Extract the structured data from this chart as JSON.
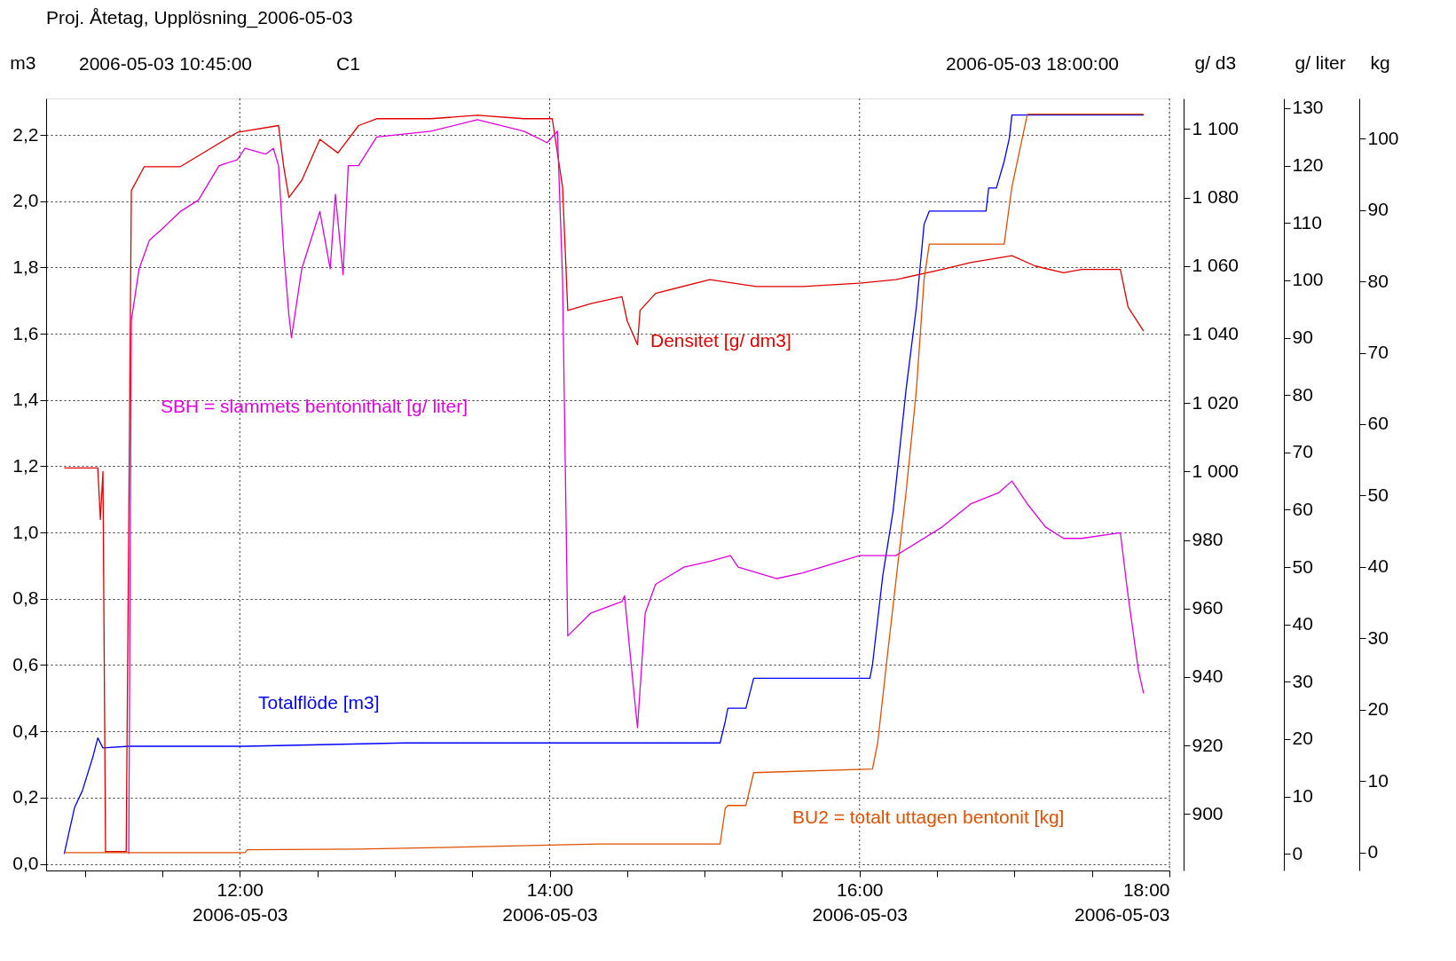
{
  "chart_data": [
    {
      "type": "line",
      "title": "Proj. Åtetag, Upplösning_2006-05-03",
      "ylabel": "m3",
      "y2label": "g/ d3",
      "y3label": "g/ liter",
      "annotations": [
        "2006-05-03 10:45:00",
        "C1",
        "2006-05-03 18:00:00"
      ],
      "grid": true,
      "xlim": [
        "2006-05-03T10:45",
        "2006-05-03T18:00"
      ],
      "xticks": [
        {
          "value": "2006-05-03T11:00",
          "label": null
        },
        {
          "value": "2006-05-03T11:30",
          "label": null
        },
        {
          "value": "2006-05-03T12:00",
          "label": "12:00\n2006-05-03"
        },
        {
          "value": "2006-05-03T12:30",
          "label": null
        },
        {
          "value": "2006-05-03T13:00",
          "label": null
        },
        {
          "value": "2006-05-03T13:30",
          "label": null
        },
        {
          "value": "2006-05-03T14:00",
          "label": "14:00\n2006-05-03"
        },
        {
          "value": "2006-05-03T14:30",
          "label": null
        },
        {
          "value": "2006-05-03T15:00",
          "label": null
        },
        {
          "value": "2006-05-03T15:30",
          "label": null
        },
        {
          "value": "2006-05-03T16:00",
          "label": "16:00\n2006-05-03"
        },
        {
          "value": "2006-05-03T16:30",
          "label": null
        },
        {
          "value": "2006-05-03T17:00",
          "label": null
        },
        {
          "value": "2006-05-03T17:30",
          "label": null
        },
        {
          "value": "2006-05-03T18:00",
          "label": "18:00\n2006-05-03"
        }
      ],
      "ylim": [
        -0.02,
        2.31
      ],
      "yticks": [
        {
          "value": 0,
          "label": "0,0"
        },
        {
          "value": 0.2,
          "label": "0,2"
        },
        {
          "value": 0.4,
          "label": "0,4"
        },
        {
          "value": 0.6,
          "label": "0,6"
        },
        {
          "value": 0.8,
          "label": "0,8"
        },
        {
          "value": 1.0,
          "label": "1,0"
        },
        {
          "value": 1.2,
          "label": "1,2"
        },
        {
          "value": 1.4,
          "label": "1,4"
        },
        {
          "value": 1.6,
          "label": "1,6"
        },
        {
          "value": 1.8,
          "label": "1,8"
        },
        {
          "value": 2.0,
          "label": "2,0"
        },
        {
          "value": 2.2,
          "label": "2,2"
        }
      ],
      "y2lim": [
        883.5,
        1108.9
      ],
      "y2ticks": [
        900,
        920,
        940,
        960,
        980,
        {
          "value": 1000,
          "label": "1 000"
        },
        {
          "value": 1020,
          "label": "1 020"
        },
        {
          "value": 1040,
          "label": "1 040"
        },
        {
          "value": 1060,
          "label": "1 060"
        },
        {
          "value": 1080,
          "label": "1 080"
        },
        {
          "value": 1100,
          "label": "1 100"
        }
      ],
      "y3lim": [
        -2.9,
        131.7
      ],
      "y3ticks": [
        0,
        10,
        20,
        30,
        40,
        50,
        60,
        70,
        80,
        90,
        100,
        110,
        120,
        130
      ],
      "series": [
        {
          "name": "Totalflöde [m3]",
          "color": "#0000ff",
          "axis": "y",
          "x": [
            "2006-05-03T10:52",
            "2006-05-03T10:56",
            "2006-05-03T10:59",
            "2006-05-03T11:03",
            "2006-05-03T11:05",
            "2006-05-03T11:07",
            "2006-05-03T11:17",
            "2006-05-03T12:02",
            "2006-05-03T13:04",
            "2006-05-03T15:06",
            "2006-05-03T15:08",
            "2006-05-03T15:09",
            "2006-05-03T15:16",
            "2006-05-03T15:19",
            "2006-05-03T16:04",
            "2006-05-03T16:05",
            "2006-05-03T16:09",
            "2006-05-03T16:13",
            "2006-05-03T16:18",
            "2006-05-03T16:22",
            "2006-05-03T16:25",
            "2006-05-03T16:27",
            "2006-05-03T16:49",
            "2006-05-03T16:50",
            "2006-05-03T16:53",
            "2006-05-03T16:56",
            "2006-05-03T16:58",
            "2006-05-03T16:59",
            "2006-05-03T17:50"
          ],
          "values": [
            0.03,
            0.17,
            0.22,
            0.32,
            0.38,
            0.35,
            0.355,
            0.355,
            0.365,
            0.365,
            0.43,
            0.47,
            0.47,
            0.56,
            0.56,
            0.6,
            0.87,
            1.065,
            1.43,
            1.68,
            1.93,
            1.97,
            1.97,
            2.04,
            2.04,
            2.12,
            2.19,
            2.26,
            2.26
          ]
        },
        {
          "name": "Densitet [g/ dm3]",
          "color": "#e00000",
          "axis": "y2",
          "x": [
            "2006-05-03T10:52",
            "2006-05-03T11:05",
            "2006-05-03T11:06",
            "2006-05-03T11:07",
            "2006-05-03T11:08",
            "2006-05-03T11:16",
            "2006-05-03T11:18",
            "2006-05-03T11:23",
            "2006-05-03T11:37",
            "2006-05-03T11:48",
            "2006-05-03T11:59",
            "2006-05-03T12:15",
            "2006-05-03T12:17",
            "2006-05-03T12:19",
            "2006-05-03T12:24",
            "2006-05-03T12:31",
            "2006-05-03T12:38",
            "2006-05-03T12:46",
            "2006-05-03T12:53",
            "2006-05-03T13:14",
            "2006-05-03T13:32",
            "2006-05-03T13:50",
            "2006-05-03T14:01",
            "2006-05-03T14:05",
            "2006-05-03T14:07",
            "2006-05-03T14:16",
            "2006-05-03T14:28",
            "2006-05-03T14:30",
            "2006-05-03T14:34",
            "2006-05-03T14:35",
            "2006-05-03T14:41",
            "2006-05-03T15:02",
            "2006-05-03T15:20",
            "2006-05-03T15:38",
            "2006-05-03T16:00",
            "2006-05-03T16:14",
            "2006-05-03T16:32",
            "2006-05-03T16:43",
            "2006-05-03T16:59",
            "2006-05-03T17:08",
            "2006-05-03T17:19",
            "2006-05-03T17:26",
            "2006-05-03T17:41",
            "2006-05-03T17:44",
            "2006-05-03T17:50"
          ],
          "values": [
            1001,
            1001,
            986,
            1000,
            889,
            889,
            1082,
            1089,
            1089,
            1094,
            1099,
            1101,
            1089,
            1080,
            1085,
            1097,
            1093,
            1101,
            1103,
            1103,
            1104,
            1103,
            1103,
            1083,
            1047,
            1049,
            1051,
            1044,
            1037,
            1047,
            1052,
            1056,
            1054,
            1054,
            1055,
            1056,
            1059,
            1061,
            1063,
            1060,
            1058,
            1059,
            1059,
            1048,
            1041
          ]
        },
        {
          "name": "SBH = slammets bentonithalt [g/ liter]",
          "color": "#e000e0",
          "axis": "y3",
          "x": [
            "2006-05-03T11:17",
            "2006-05-03T11:18",
            "2006-05-03T11:21",
            "2006-05-03T11:25",
            "2006-05-03T11:30",
            "2006-05-03T11:37",
            "2006-05-03T11:44",
            "2006-05-03T11:52",
            "2006-05-03T11:59",
            "2006-05-03T12:02",
            "2006-05-03T12:10",
            "2006-05-03T12:13",
            "2006-05-03T12:15",
            "2006-05-03T12:17",
            "2006-05-03T12:19",
            "2006-05-03T12:20",
            "2006-05-03T12:24",
            "2006-05-03T12:31",
            "2006-05-03T12:35",
            "2006-05-03T12:37",
            "2006-05-03T12:40",
            "2006-05-03T12:42",
            "2006-05-03T12:46",
            "2006-05-03T12:53",
            "2006-05-03T13:14",
            "2006-05-03T13:32",
            "2006-05-03T13:50",
            "2006-05-03T13:59",
            "2006-05-03T14:03",
            "2006-05-03T14:05",
            "2006-05-03T14:07",
            "2006-05-03T14:16",
            "2006-05-03T14:28",
            "2006-05-03T14:29",
            "2006-05-03T14:32",
            "2006-05-03T14:34",
            "2006-05-03T14:37",
            "2006-05-03T14:41",
            "2006-05-03T14:52",
            "2006-05-03T15:02",
            "2006-05-03T15:10",
            "2006-05-03T15:13",
            "2006-05-03T15:28",
            "2006-05-03T15:38",
            "2006-05-03T16:00",
            "2006-05-03T16:14",
            "2006-05-03T16:32",
            "2006-05-03T16:43",
            "2006-05-03T16:54",
            "2006-05-03T16:59",
            "2006-05-03T17:05",
            "2006-05-03T17:12",
            "2006-05-03T17:19",
            "2006-05-03T17:26",
            "2006-05-03T17:41",
            "2006-05-03T17:44",
            "2006-05-03T17:48",
            "2006-05-03T17:50"
          ],
          "values": [
            0,
            93,
            102,
            107,
            109,
            112,
            114,
            120,
            121,
            123,
            122,
            123,
            120,
            105,
            94,
            90,
            102,
            112,
            102,
            115,
            101,
            120,
            120,
            125,
            126,
            128,
            126,
            124,
            126,
            100,
            38,
            42,
            44,
            45,
            31,
            22,
            42,
            47,
            50,
            51,
            52,
            50,
            48,
            49,
            52,
            52,
            57,
            61,
            63,
            65,
            61,
            57,
            55,
            55,
            56,
            45,
            32,
            28
          ]
        }
      ]
    },
    {
      "type": "line",
      "ylabel": "kg",
      "tick_labels": "y",
      "xlim": [
        "2006-05-03T10:45",
        "2006-05-03T18:00"
      ],
      "ylim": [
        -2.5,
        105.6
      ],
      "yticks": [
        0,
        10,
        20,
        30,
        40,
        50,
        60,
        70,
        80,
        90,
        100
      ],
      "series": [
        {
          "name": "BU2 = totalt uttagen bentonit [kg]",
          "color": "#e05000",
          "axis": "y",
          "x": [
            "2006-05-03T10:52",
            "2006-05-03T12:02",
            "2006-05-03T12:03",
            "2006-05-03T12:46",
            "2006-05-03T13:29",
            "2006-05-03T14:19",
            "2006-05-03T15:06",
            "2006-05-03T15:08",
            "2006-05-03T15:09",
            "2006-05-03T15:16",
            "2006-05-03T15:19",
            "2006-05-03T16:05",
            "2006-05-03T16:07",
            "2006-05-03T16:11",
            "2006-05-03T16:18",
            "2006-05-03T16:22",
            "2006-05-03T16:25",
            "2006-05-03T16:27",
            "2006-05-03T16:56",
            "2006-05-03T16:59",
            "2006-05-03T17:05",
            "2006-05-03T17:50"
          ],
          "values": [
            0,
            0,
            0.4,
            0.5,
            0.8,
            1.2,
            1.2,
            6.2,
            6.6,
            6.6,
            11.2,
            11.7,
            15.3,
            28.3,
            50.4,
            64.7,
            80.3,
            85.2,
            85.2,
            93.2,
            103.4,
            103.4
          ]
        }
      ]
    }
  ]
}
